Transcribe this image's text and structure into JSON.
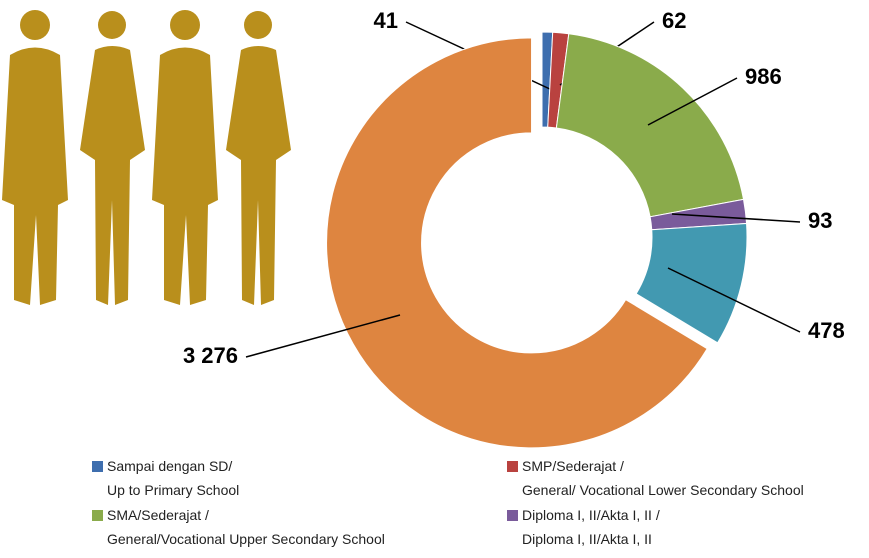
{
  "chart_data": {
    "type": "donut",
    "categories": [
      [
        "Sampai dengan SD/",
        "Up to Primary School"
      ],
      [
        "SMP/Sederajat /",
        "General/ Vocational Lower Secondary School"
      ],
      [
        "SMA/Sederajat /",
        "General/Vocational Upper Secondary School"
      ],
      [
        "Diploma I, II/Akta I, II /",
        "Diploma I, II/Akta I, II"
      ],
      null,
      null
    ],
    "values": [
      41,
      62,
      986,
      93,
      478,
      3276
    ],
    "value_labels": [
      "41",
      "62",
      "986",
      "93",
      "478",
      "3 276"
    ],
    "colors": [
      "#3e6eae",
      "#b9423f",
      "#8aab4b",
      "#7a5b9b",
      "#4299b1",
      "#de8540"
    ]
  }
}
